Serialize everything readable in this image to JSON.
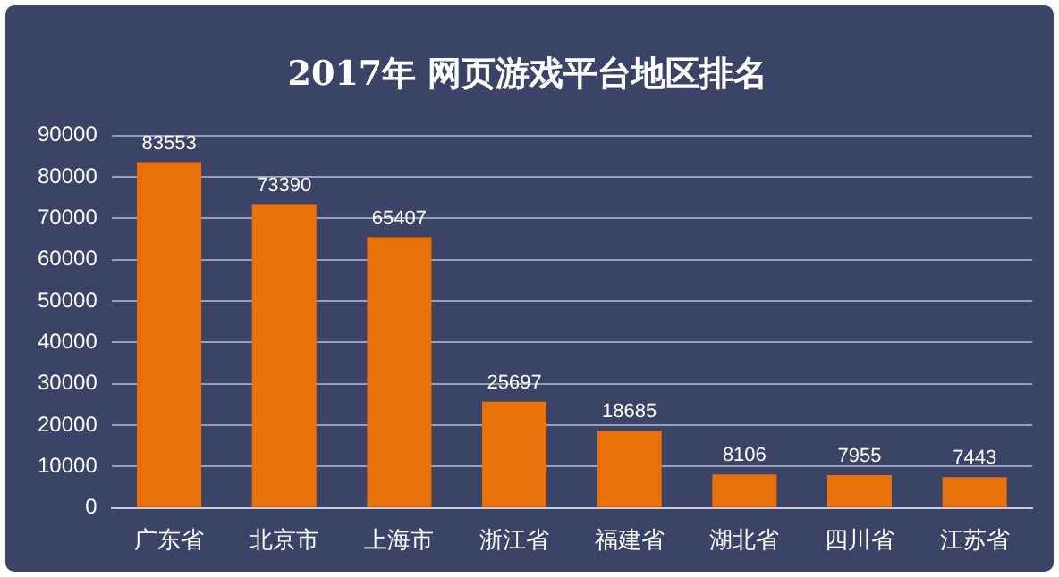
{
  "chart_data": {
    "type": "bar",
    "title": "2017年 网页游戏平台地区排名",
    "categories": [
      "广东省",
      "北京市",
      "上海市",
      "浙江省",
      "福建省",
      "湖北省",
      "四川省",
      "江苏省"
    ],
    "values": [
      83553,
      73390,
      65407,
      25697,
      18685,
      8106,
      7955,
      7443
    ],
    "color": "#e8710a",
    "ylim": [
      0,
      90000
    ],
    "yticks": [
      0,
      10000,
      20000,
      30000,
      40000,
      50000,
      60000,
      70000,
      80000,
      90000
    ],
    "grid": "y",
    "data_labels": true,
    "legend": false
  }
}
